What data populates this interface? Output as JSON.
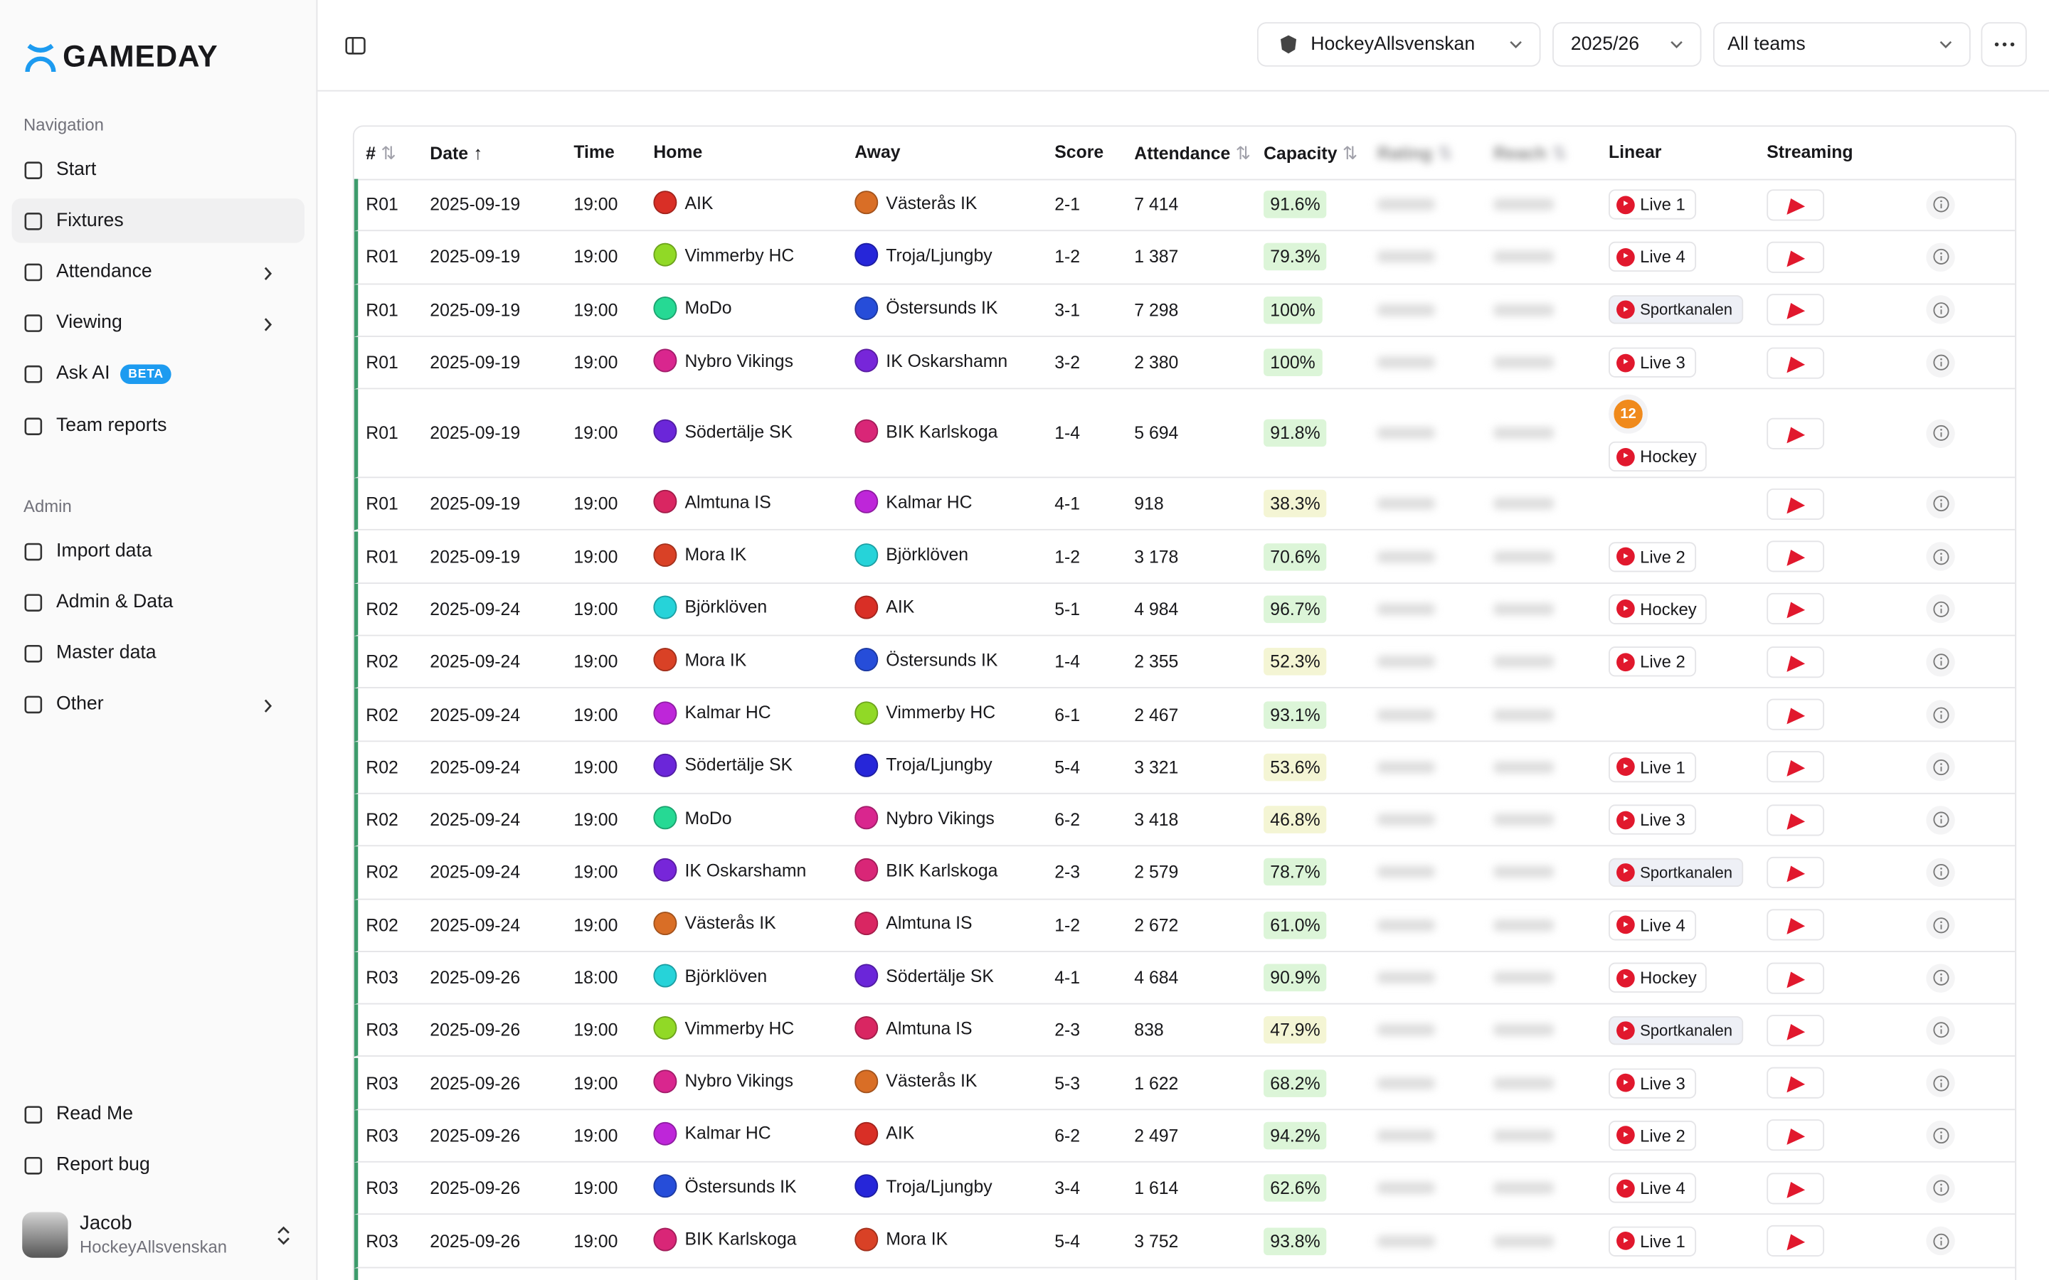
{
  "sidebar": {
    "brand": "GAMEDAY",
    "nav_title": "Navigation",
    "nav": [
      "Start",
      "Fixtures",
      "Attendance",
      "Viewing",
      "Ask AI",
      "Team reports"
    ],
    "beta": "BETA",
    "admin_title": "Admin",
    "admin": [
      "Import data",
      "Admin & Data",
      "Master data",
      "Other"
    ],
    "footer": [
      "Read Me",
      "Report bug"
    ],
    "user": {
      "name": "Jacob",
      "org": "HockeyAllsvenskan"
    }
  },
  "header": {
    "league": "HockeyAllsvenskan",
    "season": "2025/26",
    "teams": "All teams"
  },
  "table": {
    "columns": [
      "#",
      "Date",
      "Time",
      "Home",
      "Away",
      "Score",
      "Attendance",
      "Capacity",
      "Rating",
      "Reach",
      "Linear",
      "Streaming"
    ],
    "rows": [
      {
        "round": "R01",
        "date": "2025-09-19",
        "time": "19:00",
        "home": "AIK",
        "away": "Västerås IK",
        "score": "2-1",
        "attendance": "7 414",
        "capacity": "91.6%",
        "linear": [
          "Live 1"
        ]
      },
      {
        "round": "R01",
        "date": "2025-09-19",
        "time": "19:00",
        "home": "Vimmerby HC",
        "away": "Troja/Ljungby",
        "score": "1-2",
        "attendance": "1 387",
        "capacity": "79.3%",
        "linear": [
          "Live 4"
        ]
      },
      {
        "round": "R01",
        "date": "2025-09-19",
        "time": "19:00",
        "home": "MoDo",
        "away": "Östersunds IK",
        "score": "3-1",
        "attendance": "7 298",
        "capacity": "100%",
        "linear": [
          "Sportkanalen"
        ]
      },
      {
        "round": "R01",
        "date": "2025-09-19",
        "time": "19:00",
        "home": "Nybro Vikings",
        "away": "IK Oskarshamn",
        "score": "3-2",
        "attendance": "2 380",
        "capacity": "100%",
        "linear": [
          "Live 3"
        ]
      },
      {
        "round": "R01",
        "date": "2025-09-19",
        "time": "19:00",
        "home": "Södertälje SK",
        "away": "BIK Karlskoga",
        "score": "1-4",
        "attendance": "5 694",
        "capacity": "91.8%",
        "linear": [
          "12",
          "Hockey"
        ]
      },
      {
        "round": "R01",
        "date": "2025-09-19",
        "time": "19:00",
        "home": "Almtuna IS",
        "away": "Kalmar HC",
        "score": "4-1",
        "attendance": "918",
        "capacity": "38.3%",
        "linear": []
      },
      {
        "round": "R01",
        "date": "2025-09-19",
        "time": "19:00",
        "home": "Mora IK",
        "away": "Björklöven",
        "score": "1-2",
        "attendance": "3 178",
        "capacity": "70.6%",
        "linear": [
          "Live 2"
        ]
      },
      {
        "round": "R02",
        "date": "2025-09-24",
        "time": "19:00",
        "home": "Björklöven",
        "away": "AIK",
        "score": "5-1",
        "attendance": "4 984",
        "capacity": "96.7%",
        "linear": [
          "Hockey"
        ]
      },
      {
        "round": "R02",
        "date": "2025-09-24",
        "time": "19:00",
        "home": "Mora IK",
        "away": "Östersunds IK",
        "score": "1-4",
        "attendance": "2 355",
        "capacity": "52.3%",
        "linear": [
          "Live 2"
        ]
      },
      {
        "round": "R02",
        "date": "2025-09-24",
        "time": "19:00",
        "home": "Kalmar HC",
        "away": "Vimmerby HC",
        "score": "6-1",
        "attendance": "2 467",
        "capacity": "93.1%",
        "linear": []
      },
      {
        "round": "R02",
        "date": "2025-09-24",
        "time": "19:00",
        "home": "Södertälje SK",
        "away": "Troja/Ljungby",
        "score": "5-4",
        "attendance": "3 321",
        "capacity": "53.6%",
        "linear": [
          "Live 1"
        ]
      },
      {
        "round": "R02",
        "date": "2025-09-24",
        "time": "19:00",
        "home": "MoDo",
        "away": "Nybro Vikings",
        "score": "6-2",
        "attendance": "3 418",
        "capacity": "46.8%",
        "linear": [
          "Live 3"
        ]
      },
      {
        "round": "R02",
        "date": "2025-09-24",
        "time": "19:00",
        "home": "IK Oskarshamn",
        "away": "BIK Karlskoga",
        "score": "2-3",
        "attendance": "2 579",
        "capacity": "78.7%",
        "linear": [
          "Sportkanalen"
        ]
      },
      {
        "round": "R02",
        "date": "2025-09-24",
        "time": "19:00",
        "home": "Västerås IK",
        "away": "Almtuna IS",
        "score": "1-2",
        "attendance": "2 672",
        "capacity": "61.0%",
        "linear": [
          "Live 4"
        ]
      },
      {
        "round": "R03",
        "date": "2025-09-26",
        "time": "18:00",
        "home": "Björklöven",
        "away": "Södertälje SK",
        "score": "4-1",
        "attendance": "4 684",
        "capacity": "90.9%",
        "linear": [
          "Hockey"
        ]
      },
      {
        "round": "R03",
        "date": "2025-09-26",
        "time": "19:00",
        "home": "Vimmerby HC",
        "away": "Almtuna IS",
        "score": "2-3",
        "attendance": "838",
        "capacity": "47.9%",
        "linear": [
          "Sportkanalen"
        ]
      },
      {
        "round": "R03",
        "date": "2025-09-26",
        "time": "19:00",
        "home": "Nybro Vikings",
        "away": "Västerås IK",
        "score": "5-3",
        "attendance": "1 622",
        "capacity": "68.2%",
        "linear": [
          "Live 3"
        ]
      },
      {
        "round": "R03",
        "date": "2025-09-26",
        "time": "19:00",
        "home": "Kalmar HC",
        "away": "AIK",
        "score": "6-2",
        "attendance": "2 497",
        "capacity": "94.2%",
        "linear": [
          "Live 2"
        ]
      },
      {
        "round": "R03",
        "date": "2025-09-26",
        "time": "19:00",
        "home": "Östersunds IK",
        "away": "Troja/Ljungby",
        "score": "3-4",
        "attendance": "1 614",
        "capacity": "62.6%",
        "linear": [
          "Live 4"
        ]
      },
      {
        "round": "R03",
        "date": "2025-09-26",
        "time": "19:00",
        "home": "BIK Karlskoga",
        "away": "Mora IK",
        "score": "5-4",
        "attendance": "3 752",
        "capacity": "93.8%",
        "linear": [
          "Live 1"
        ]
      }
    ]
  }
}
